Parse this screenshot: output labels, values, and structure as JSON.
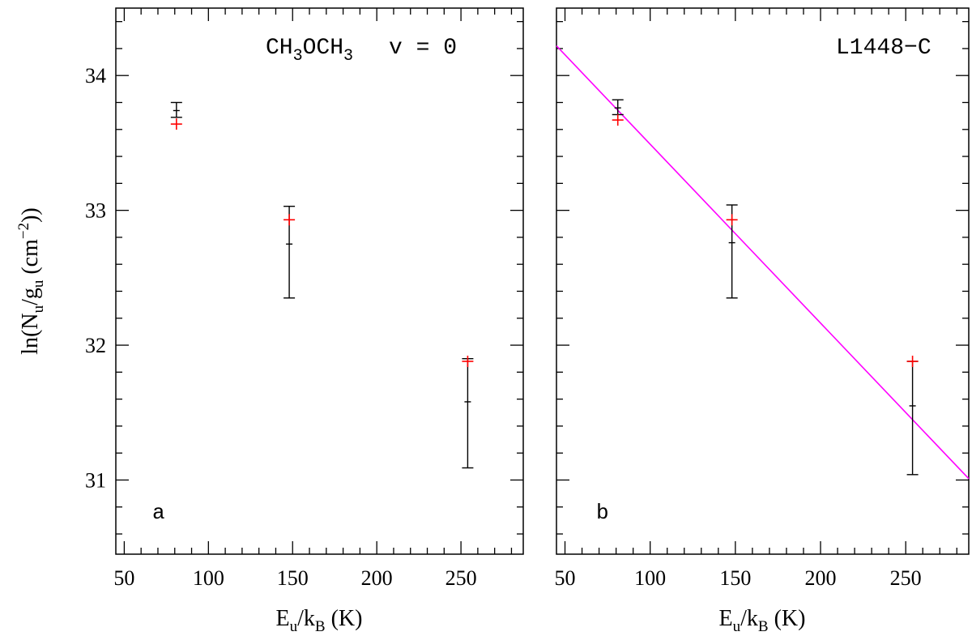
{
  "chart_data": [
    {
      "type": "scatter",
      "panel_label": "a",
      "annotation": {
        "parts": [
          "CH",
          "3",
          "OCH",
          "3",
          "v = 0"
        ]
      },
      "xlabel": {
        "main": "E",
        "sub1": "u",
        "mid": "/k",
        "sub2": "B",
        "tail": " (K)"
      },
      "ylabel": {
        "head": "ln(N",
        "sub1": "u",
        "mid": "/g",
        "sub2": "u",
        "unit": " (cm",
        "sup": "−2",
        "tail": "))"
      },
      "xlim": [
        45,
        287
      ],
      "ylim": [
        30.45,
        34.5
      ],
      "xticks": [
        "50",
        "100",
        "150",
        "200",
        "250"
      ],
      "yticks": [
        "31",
        "32",
        "33",
        "34"
      ],
      "series": [
        {
          "color": "#000000",
          "kind": "errorbar",
          "points": [
            {
              "x": 81,
              "y": 33.74,
              "ylo": 33.69,
              "yhi": 33.8
            },
            {
              "x": 148,
              "y": 32.75,
              "ylo": 32.35,
              "yhi": 33.03
            },
            {
              "x": 254,
              "y": 31.58,
              "ylo": 31.09,
              "yhi": 31.9
            }
          ]
        },
        {
          "color": "#ff0000",
          "kind": "model",
          "points": [
            {
              "x": 81,
              "y": 33.64
            },
            {
              "x": 148,
              "y": 32.93
            },
            {
              "x": 254,
              "y": 31.88
            }
          ]
        }
      ]
    },
    {
      "type": "scatter",
      "panel_label": "b",
      "annotation": {
        "parts": [
          "L1448−C"
        ]
      },
      "xlabel": {
        "main": "E",
        "sub1": "u",
        "mid": "/k",
        "sub2": "B",
        "tail": " (K)"
      },
      "xlim": [
        45,
        287
      ],
      "ylim": [
        30.45,
        34.5
      ],
      "xticks": [
        "50",
        "100",
        "150",
        "200",
        "250"
      ],
      "yticks": [],
      "series": [
        {
          "color": "#000000",
          "kind": "errorbar",
          "points": [
            {
              "x": 81,
              "y": 33.76,
              "ylo": 33.71,
              "yhi": 33.82
            },
            {
              "x": 148,
              "y": 32.76,
              "ylo": 32.35,
              "yhi": 33.04
            },
            {
              "x": 254,
              "y": 31.55,
              "ylo": 31.04,
              "yhi": 31.88
            }
          ]
        },
        {
          "color": "#ff0000",
          "kind": "model",
          "points": [
            {
              "x": 81,
              "y": 33.67
            },
            {
              "x": 148,
              "y": 32.93
            },
            {
              "x": 254,
              "y": 31.88
            }
          ]
        }
      ],
      "fit_line": {
        "color": "#ff00ff",
        "x": [
          45,
          287
        ],
        "y": [
          34.22,
          31.01
        ]
      }
    }
  ]
}
